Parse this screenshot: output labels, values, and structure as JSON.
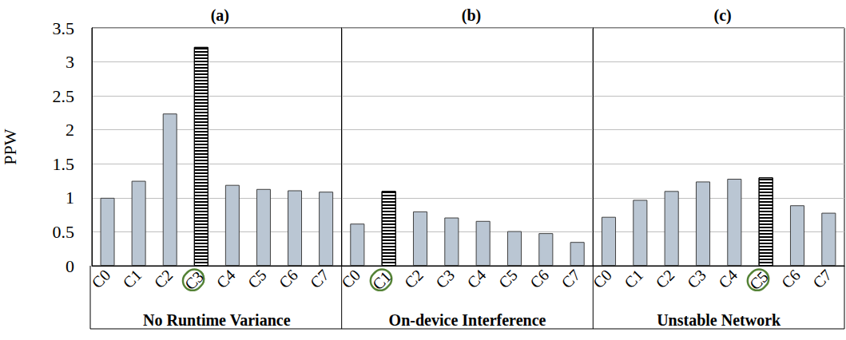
{
  "chart_data": [
    {
      "type": "bar",
      "title": "(a)",
      "xlabel": "No Runtime Variance",
      "ylabel": "PPW",
      "categories": [
        "C0",
        "C1",
        "C2",
        "C3",
        "C4",
        "C5",
        "C6",
        "C7"
      ],
      "values": [
        1.0,
        1.25,
        2.24,
        3.22,
        1.19,
        1.13,
        1.11,
        1.09
      ],
      "color": "#bac6d3",
      "colors": [
        "#bac6d3",
        "#bac6d3",
        "#bac6d3",
        "#000000",
        "#bac6d3",
        "#bac6d3",
        "#bac6d3",
        "#bac6d3"
      ],
      "ylim": [
        0,
        3.5
      ],
      "yticks": [
        0,
        0.5,
        1,
        1.5,
        2,
        2.5,
        3,
        3.5
      ],
      "grid": true
    },
    {
      "type": "bar",
      "title": "(b)",
      "xlabel": "On-device Interference",
      "categories": [
        "C0",
        "C1",
        "C2",
        "C3",
        "C4",
        "C5",
        "C6",
        "C7"
      ],
      "values": [
        0.62,
        1.1,
        0.8,
        0.71,
        0.66,
        0.51,
        0.48,
        0.35
      ],
      "color": "#bac6d3",
      "colors": [
        "#bac6d3",
        "#000000",
        "#bac6d3",
        "#bac6d3",
        "#bac6d3",
        "#bac6d3",
        "#bac6d3",
        "#bac6d3"
      ],
      "ylim": [
        0,
        3.5
      ],
      "yticks": [
        0,
        0.5,
        1,
        1.5,
        2,
        2.5,
        3,
        3.5
      ],
      "grid": true,
      "tick_labels": "x"
    },
    {
      "type": "bar",
      "title": "(c)",
      "xlabel": "Unstable Network",
      "categories": [
        "C0",
        "C1",
        "C2",
        "C3",
        "C4",
        "C5",
        "C6",
        "C7"
      ],
      "values": [
        0.72,
        0.97,
        1.1,
        1.24,
        1.28,
        1.3,
        0.89,
        0.78
      ],
      "color": "#bac6d3",
      "colors": [
        "#bac6d3",
        "#bac6d3",
        "#bac6d3",
        "#bac6d3",
        "#bac6d3",
        "#000000",
        "#bac6d3",
        "#bac6d3"
      ],
      "ylim": [
        0,
        3.5
      ],
      "yticks": [
        0,
        0.5,
        1,
        1.5,
        2,
        2.5,
        3,
        3.5
      ],
      "grid": true,
      "tick_labels": "x"
    }
  ]
}
